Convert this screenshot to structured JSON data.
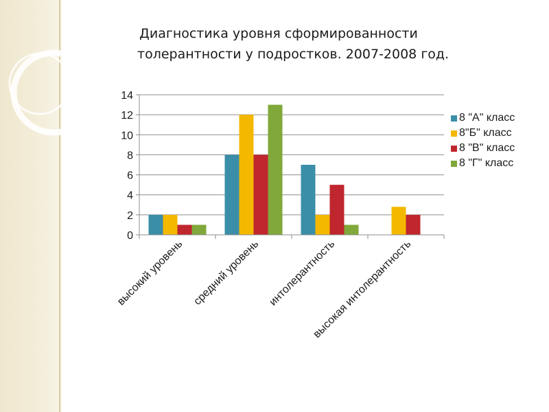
{
  "slide": {
    "title_line1": "Диагностика уровня сформированности",
    "title_line2": "толерантности у подростков. 2007-2008 год."
  },
  "colors": {
    "series": [
      "#3a8ea8",
      "#f5b800",
      "#c0262e",
      "#80a83a"
    ],
    "band": "#efe7cd",
    "grid": "#8c8c8c"
  },
  "chart_data": {
    "type": "bar",
    "title": "",
    "xlabel": "",
    "ylabel": "",
    "ylim": [
      0,
      14
    ],
    "yticks": [
      0,
      2,
      4,
      6,
      8,
      10,
      12,
      14
    ],
    "grid": true,
    "legend_position": "right",
    "categories": [
      "высокий уровень",
      "средний уровень",
      "интолерантность",
      "высокая интолерантность"
    ],
    "series": [
      {
        "name": "8 \"А\" класс",
        "values": [
          2,
          8,
          7,
          0
        ]
      },
      {
        "name": "8\"Б\" класс",
        "values": [
          2,
          12,
          2,
          2.8
        ]
      },
      {
        "name": "8 \"В\" класс",
        "values": [
          1,
          8,
          5,
          2
        ]
      },
      {
        "name": "8 \"Г\" класс",
        "values": [
          1,
          13,
          1,
          0
        ]
      }
    ]
  }
}
